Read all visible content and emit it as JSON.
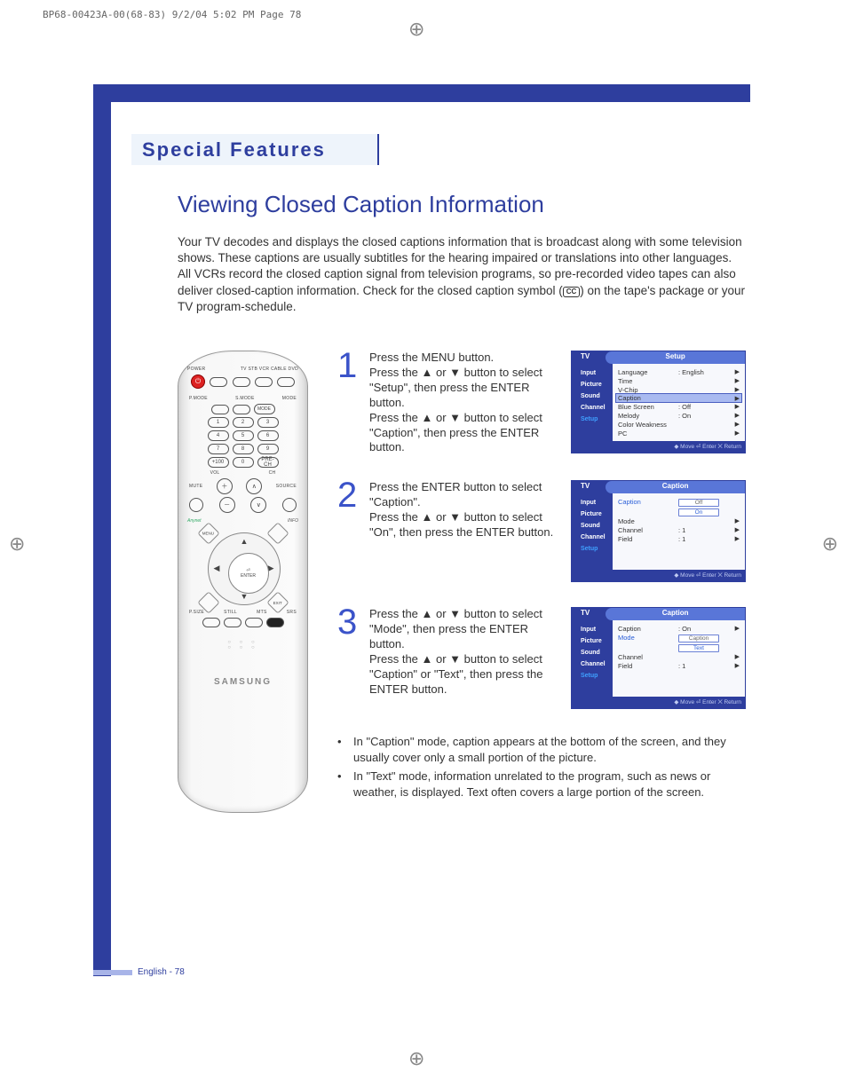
{
  "print_header": "BP68-00423A-00(68-83)  9/2/04  5:02 PM  Page 78",
  "section_title": "Special Features",
  "page_title": "Viewing Closed Caption Information",
  "intro_a": "Your TV decodes and displays the closed captions information that is broadcast along with some television shows. These captions are usually subtitles for the hearing impaired or translations into other languages. All VCRs record the closed caption signal from television programs, so pre-recorded video tapes can also deliver closed-caption information. Check for the closed caption symbol (",
  "intro_cc": "CC",
  "intro_b": ") on the tape's package or your TV program-schedule.",
  "remote": {
    "power": "POWER",
    "mode_labels": "TV STB VCR CABLE DVD",
    "row1": [
      "P.MODE",
      "S.MODE",
      "MODE"
    ],
    "nums": [
      [
        "1",
        "2",
        "3"
      ],
      [
        "4",
        "5",
        "6"
      ],
      [
        "7",
        "8",
        "9"
      ],
      [
        "+100",
        "0",
        "PRE-CH"
      ]
    ],
    "vol": "VOL",
    "ch": "CH",
    "mute": "MUTE",
    "source": "SOURCE",
    "nav": [
      "MENU",
      "INFO",
      "EXIT"
    ],
    "enter": "ENTER",
    "row_bot": [
      "P.SIZE",
      "STILL",
      "MTS",
      "SRS"
    ],
    "brand": "SAMSUNG"
  },
  "step1": {
    "num": "1",
    "text": "Press the MENU button.\nPress the ▲ or ▼ button to select \"Setup\", then press the ENTER button.\nPress the ▲ or ▼ button to select \"Caption\", then press the ENTER button.",
    "osd_title": "Setup",
    "rows": [
      {
        "k": "Language",
        "v": ": English"
      },
      {
        "k": "Time",
        "v": ""
      },
      {
        "k": "V-Chip",
        "v": ""
      },
      {
        "k": "Caption",
        "v": "",
        "sel": true
      },
      {
        "k": "Blue Screen",
        "v": ": Off"
      },
      {
        "k": "Melody",
        "v": ": On"
      },
      {
        "k": "Color Weakness",
        "v": ""
      },
      {
        "k": "PC",
        "v": ""
      }
    ]
  },
  "step2": {
    "num": "2",
    "text": "Press the ENTER button to select \"Caption\".\nPress the ▲ or ▼ button to select \"On\", then press the ENTER button.",
    "osd_title": "Caption",
    "rows": [
      {
        "k": "Caption",
        "v": "",
        "pill_above": "Off",
        "pill": "On",
        "blue": true
      },
      {
        "k": "Mode",
        "v": ""
      },
      {
        "k": "Channel",
        "v": ": 1"
      },
      {
        "k": "Field",
        "v": ": 1"
      }
    ]
  },
  "step3": {
    "num": "3",
    "text": "Press the ▲ or ▼ button to select \"Mode\", then press the ENTER button.\nPress the ▲ or ▼ button to select \"Caption\" or \"Text\", then press the ENTER button.",
    "osd_title": "Caption",
    "rows": [
      {
        "k": "Caption",
        "v": ": On"
      },
      {
        "k": "Mode",
        "v": "",
        "pill_above": "Caption",
        "pill": "Text",
        "blue": true
      },
      {
        "k": "Channel",
        "v": ""
      },
      {
        "k": "Field",
        "v": ": 1"
      }
    ]
  },
  "osd_side": [
    "Input",
    "Picture",
    "Sound",
    "Channel",
    "Setup"
  ],
  "osd_tv": "TV",
  "osd_foot": "◆ Move    ⏎ Enter    ⨉ Return",
  "note1": "In \"Caption\" mode, caption appears at the bottom of the screen, and they usually cover only a small portion of the picture.",
  "note2": "In \"Text\" mode, information unrelated to the program, such as news or weather, is displayed. Text often covers a large portion of the screen.",
  "footer": "English - 78"
}
